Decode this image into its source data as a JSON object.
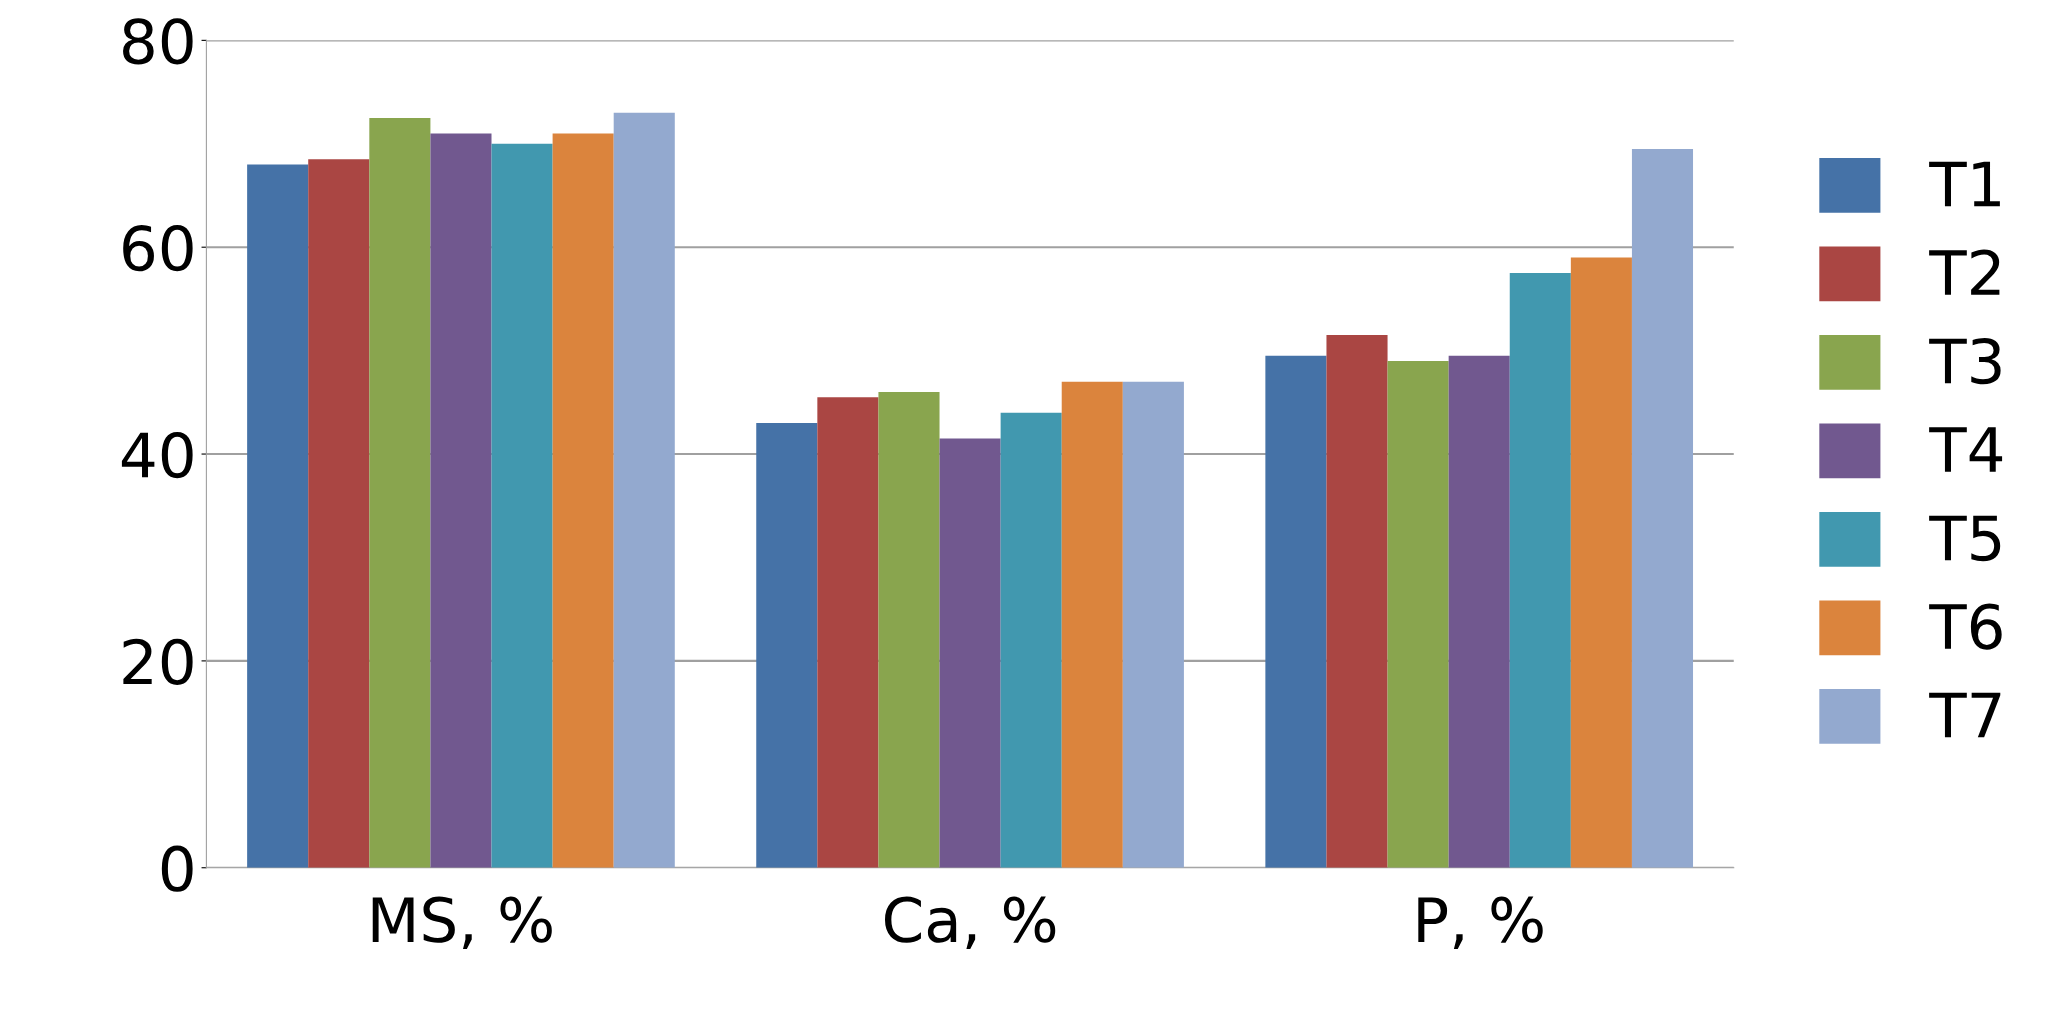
{
  "chart_data": {
    "type": "bar",
    "categories": [
      "MS, %",
      "Ca, %",
      "P, %"
    ],
    "series": [
      {
        "name": "T1",
        "color": "#4572a7",
        "values": [
          68,
          43,
          49.5
        ]
      },
      {
        "name": "T2",
        "color": "#aa4643",
        "values": [
          68.5,
          45.5,
          51.5
        ]
      },
      {
        "name": "T3",
        "color": "#89a54e",
        "values": [
          72.5,
          46,
          49
        ]
      },
      {
        "name": "T4",
        "color": "#71588f",
        "values": [
          71,
          41.5,
          49.5
        ]
      },
      {
        "name": "T5",
        "color": "#4198af",
        "values": [
          70,
          44,
          57.5
        ]
      },
      {
        "name": "T6",
        "color": "#db843d",
        "values": [
          71,
          47,
          59
        ]
      },
      {
        "name": "T7",
        "color": "#93a9cf",
        "values": [
          73,
          47,
          69.5
        ]
      }
    ],
    "ylim": [
      0,
      80
    ],
    "yticks": [
      0,
      20,
      40,
      60,
      80
    ],
    "grid": "y",
    "legend": "right"
  }
}
